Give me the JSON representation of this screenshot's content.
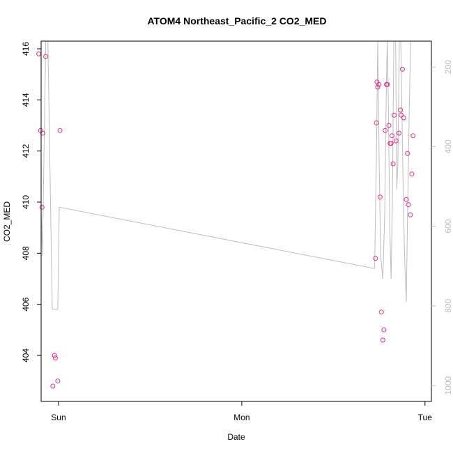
{
  "chart_data": {
    "type": "scatter",
    "title": "ATOM4 Northeast_Pacific_2 CO2_MED",
    "xlabel": "Date",
    "ylabel": "CO2_MED",
    "x_ticks": [
      {
        "label": "Sun",
        "value": 0
      },
      {
        "label": "Mon",
        "value": 1
      },
      {
        "label": "Tue",
        "value": 2
      }
    ],
    "xlim": [
      -0.095,
      2.035
    ],
    "ylim": [
      402.2,
      416.3
    ],
    "y_ticks": [
      404,
      406,
      408,
      410,
      412,
      414,
      416
    ],
    "y2_ticks": [
      200,
      400,
      600,
      800,
      1000
    ],
    "y2lim": [
      1040,
      135
    ],
    "colors": {
      "points": "#e7298a",
      "line": "#bdbdbd",
      "right_axis": "#bdbdbd"
    },
    "points": [
      {
        "x": -0.108,
        "y": 415.8
      },
      {
        "x": -0.098,
        "y": 412.8
      },
      {
        "x": -0.086,
        "y": 412.7
      },
      {
        "x": -0.07,
        "y": 415.7
      },
      {
        "x": -0.09,
        "y": 409.8
      },
      {
        "x": -0.031,
        "y": 402.8
      },
      {
        "x": -0.022,
        "y": 404.0
      },
      {
        "x": -0.017,
        "y": 403.9
      },
      {
        "x": -0.004,
        "y": 403.0
      },
      {
        "x": 0.008,
        "y": 412.8
      },
      {
        "x": 1.73,
        "y": 407.8
      },
      {
        "x": 1.735,
        "y": 413.1
      },
      {
        "x": 1.738,
        "y": 414.7
      },
      {
        "x": 1.742,
        "y": 414.5
      },
      {
        "x": 1.748,
        "y": 414.6
      },
      {
        "x": 1.755,
        "y": 410.2
      },
      {
        "x": 1.762,
        "y": 405.7
      },
      {
        "x": 1.77,
        "y": 404.6
      },
      {
        "x": 1.776,
        "y": 405.0
      },
      {
        "x": 1.783,
        "y": 412.8
      },
      {
        "x": 1.79,
        "y": 414.6
      },
      {
        "x": 1.795,
        "y": 414.6
      },
      {
        "x": 1.803,
        "y": 413.0
      },
      {
        "x": 1.81,
        "y": 412.3
      },
      {
        "x": 1.815,
        "y": 412.3
      },
      {
        "x": 1.82,
        "y": 412.6
      },
      {
        "x": 1.826,
        "y": 411.5
      },
      {
        "x": 1.832,
        "y": 413.4
      },
      {
        "x": 1.842,
        "y": 412.4
      },
      {
        "x": 1.858,
        "y": 412.7
      },
      {
        "x": 1.866,
        "y": 413.6
      },
      {
        "x": 1.87,
        "y": 413.4
      },
      {
        "x": 1.877,
        "y": 415.2
      },
      {
        "x": 1.884,
        "y": 413.3
      },
      {
        "x": 1.898,
        "y": 410.1
      },
      {
        "x": 1.905,
        "y": 411.9
      },
      {
        "x": 1.91,
        "y": 409.9
      },
      {
        "x": 1.92,
        "y": 409.5
      },
      {
        "x": 1.928,
        "y": 411.1
      },
      {
        "x": 1.935,
        "y": 412.6
      }
    ],
    "line_series": [
      {
        "x": -0.105,
        "y": 416.3
      },
      {
        "x": -0.098,
        "y": 410.5
      },
      {
        "x": -0.088,
        "y": 407.9
      },
      {
        "x": -0.078,
        "y": 412.5
      },
      {
        "x": -0.07,
        "y": 416.3
      },
      {
        "x": -0.058,
        "y": 416.3
      },
      {
        "x": -0.046,
        "y": 411.0
      },
      {
        "x": -0.034,
        "y": 405.8
      },
      {
        "x": -0.004,
        "y": 405.8
      },
      {
        "x": 0.004,
        "y": 409.8
      },
      {
        "x": 1.725,
        "y": 407.4
      },
      {
        "x": 1.735,
        "y": 411.8
      },
      {
        "x": 1.742,
        "y": 416.3
      },
      {
        "x": 1.75,
        "y": 411.5
      },
      {
        "x": 1.758,
        "y": 407.9
      },
      {
        "x": 1.77,
        "y": 407.0
      },
      {
        "x": 1.78,
        "y": 409.5
      },
      {
        "x": 1.788,
        "y": 414.0
      },
      {
        "x": 1.794,
        "y": 416.3
      },
      {
        "x": 1.8,
        "y": 414.0
      },
      {
        "x": 1.808,
        "y": 409.0
      },
      {
        "x": 1.815,
        "y": 407.0
      },
      {
        "x": 1.822,
        "y": 410.0
      },
      {
        "x": 1.83,
        "y": 416.3
      },
      {
        "x": 1.84,
        "y": 416.3
      },
      {
        "x": 1.846,
        "y": 410.5
      },
      {
        "x": 1.852,
        "y": 411.5
      },
      {
        "x": 1.86,
        "y": 416.3
      },
      {
        "x": 1.868,
        "y": 416.3
      },
      {
        "x": 1.875,
        "y": 413.3
      },
      {
        "x": 1.882,
        "y": 410.0
      },
      {
        "x": 1.89,
        "y": 407.5
      },
      {
        "x": 1.898,
        "y": 406.1
      },
      {
        "x": 1.905,
        "y": 409.5
      },
      {
        "x": 1.915,
        "y": 414.0
      },
      {
        "x": 1.922,
        "y": 416.3
      },
      {
        "x": 1.93,
        "y": 416.3
      }
    ]
  }
}
